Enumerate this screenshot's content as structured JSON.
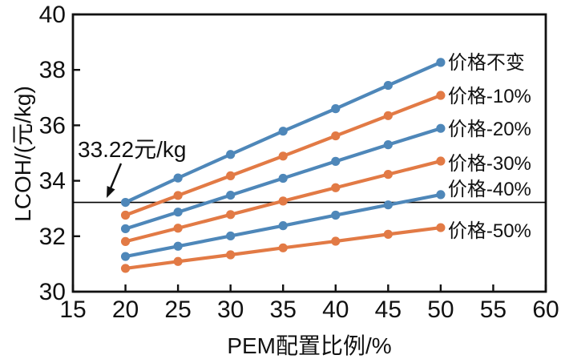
{
  "chart_data": {
    "type": "line",
    "title": "",
    "xlabel": "PEM配置比例/%",
    "ylabel": "LCOH/(元/kg)",
    "xlim": [
      15,
      60
    ],
    "ylim": [
      30,
      40
    ],
    "xticks": [
      15,
      20,
      25,
      30,
      35,
      40,
      45,
      50,
      55,
      60
    ],
    "yticks": [
      30,
      32,
      34,
      36,
      38,
      40
    ],
    "grid": false,
    "legend_position": "inline-right-end-of-lines",
    "x": [
      20,
      25,
      30,
      35,
      40,
      45,
      50
    ],
    "series": [
      {
        "name": "价格不变",
        "color": "#4e87b9",
        "marker": "circle",
        "values": [
          33.22,
          34.1,
          34.95,
          35.79,
          36.6,
          37.44,
          38.27
        ]
      },
      {
        "name": "价格-10%",
        "color": "#e27a45",
        "marker": "circle",
        "values": [
          32.76,
          33.47,
          34.18,
          34.89,
          35.62,
          36.35,
          37.08
        ]
      },
      {
        "name": "价格-20%",
        "color": "#4e87b9",
        "marker": "circle",
        "values": [
          32.27,
          32.87,
          33.48,
          34.09,
          34.7,
          35.3,
          35.89
        ]
      },
      {
        "name": "价格-30%",
        "color": "#e27a45",
        "marker": "circle",
        "values": [
          31.81,
          32.29,
          32.78,
          33.27,
          33.75,
          34.23,
          34.71
        ]
      },
      {
        "name": "价格-40%",
        "color": "#4e87b9",
        "marker": "circle",
        "values": [
          31.27,
          31.64,
          32.01,
          32.38,
          32.76,
          33.13,
          33.5
        ]
      },
      {
        "name": "价格-50%",
        "color": "#e27a45",
        "marker": "circle",
        "values": [
          30.84,
          31.09,
          31.33,
          31.58,
          31.82,
          32.07,
          32.31
        ]
      }
    ],
    "reference_line": {
      "value": 33.22,
      "color": "#000000"
    },
    "annotation": {
      "text": "33.22元/kg",
      "points_to": "reference line at 20% PEM"
    }
  }
}
